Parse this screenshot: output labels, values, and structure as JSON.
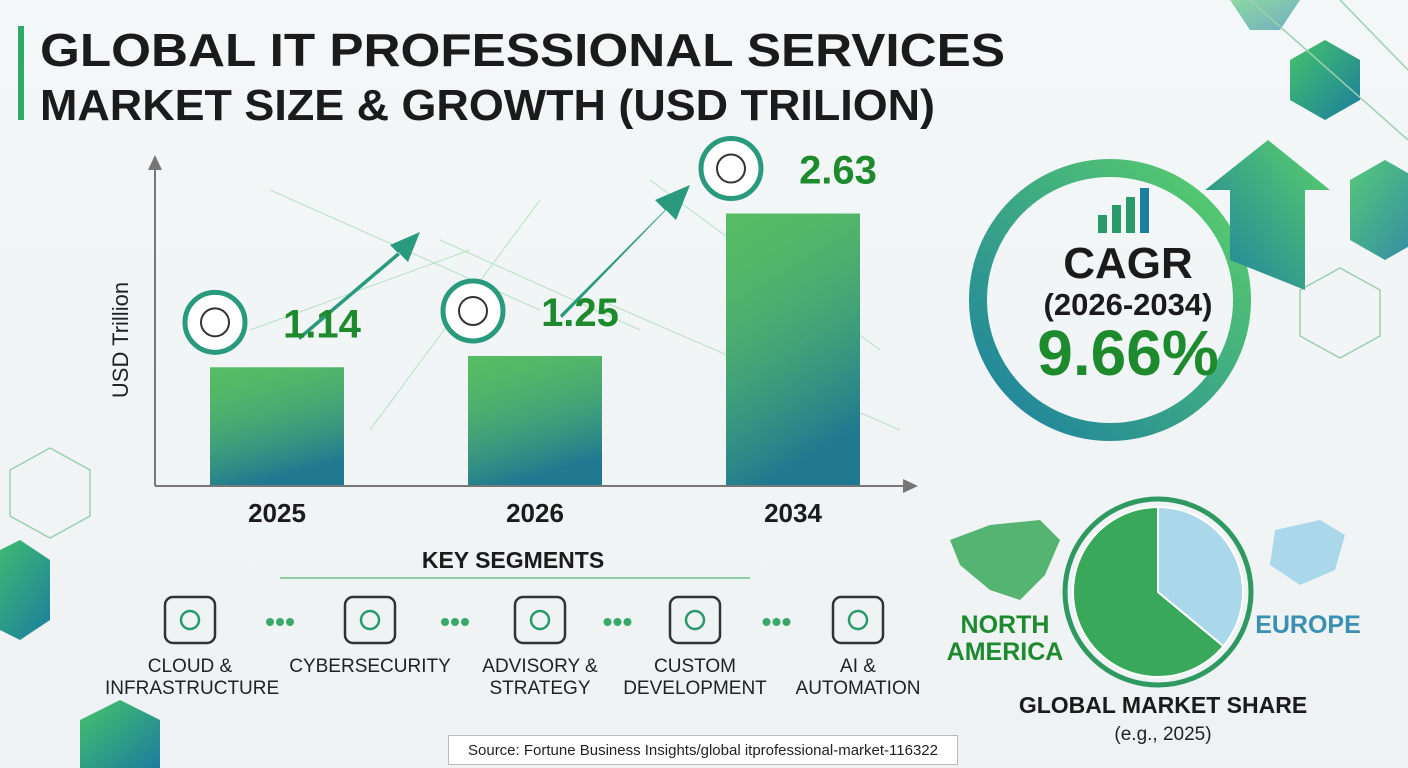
{
  "title": [
    "GLOBAL IT PROFESSIONAL SERVICES",
    "MARKET SIZE & GROWTH (USD TRILION)"
  ],
  "chart_data": [
    {
      "type": "bar",
      "y_label": "USD Trillion",
      "categories": [
        "2025",
        "2026",
        "2034"
      ],
      "values": [
        1.14,
        1.25,
        2.63
      ],
      "color": "#3fae5e",
      "ylim": [
        0,
        3.1
      ]
    },
    {
      "type": "pie",
      "title": "GLOBAL MARKET SHARE",
      "subtitle": "(e.g., 2025)",
      "categories": [
        "NORTH AMERICA",
        "EUROPE"
      ],
      "values": [
        64,
        36
      ],
      "colors": [
        "#3aa85a",
        "#aad8ea"
      ],
      "label_colors": [
        "#1e8a2e",
        "#3b8fb0"
      ]
    }
  ],
  "cagr": {
    "label": "CAGR",
    "period": "(2026-2034)",
    "value": "9.66%"
  },
  "key_segments": {
    "title": "KEY SEGMENTS",
    "items": [
      "CLOUD & INFRASTRUCTURE",
      "CYBERSECURITY",
      "ADVISORY & STRATEGY",
      "CUSTOM DEVELOPMENT",
      "AI & AUTOMATION"
    ]
  },
  "source": "Source: Fortune Business Insights/global itprofessional-market-116322"
}
